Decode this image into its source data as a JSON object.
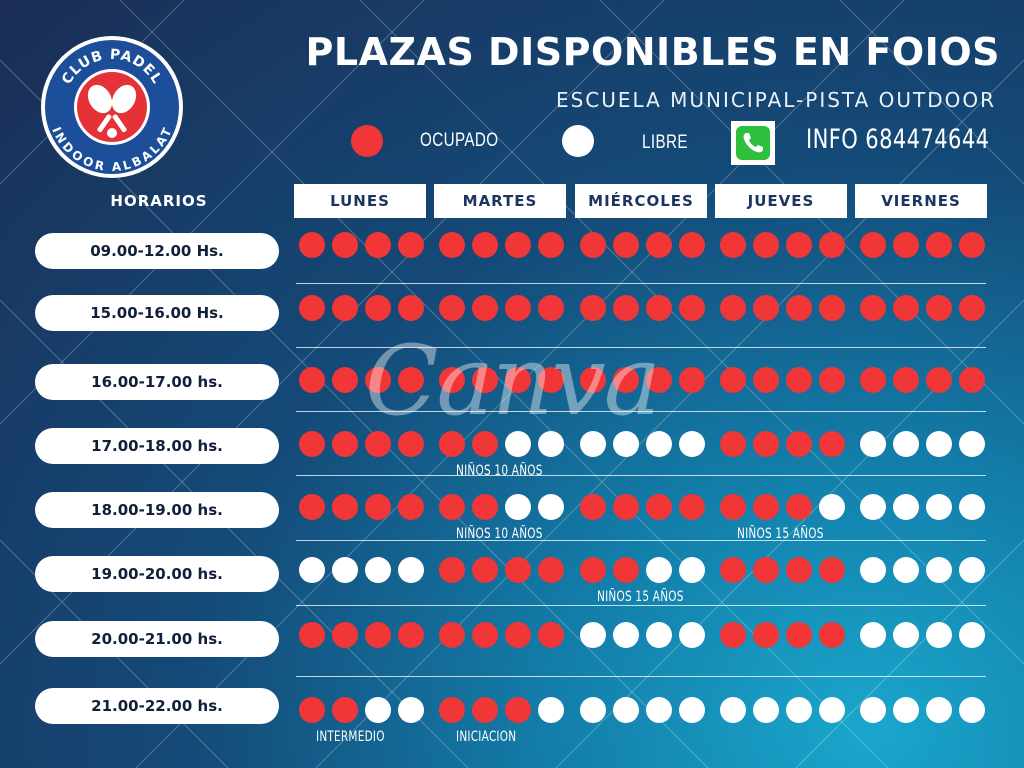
{
  "header": {
    "title": "PLAZAS DISPONIBLES EN FOIOS",
    "subtitle": "ESCUELA MUNICIPAL-PISTA OUTDOOR"
  },
  "logo": {
    "top_text": "CLUB PADEL",
    "bottom_text": "INDOOR ALBALAT"
  },
  "legend": {
    "occupied_label": "OCUPADO",
    "free_label": "LIBRE",
    "occupied_color": "#f03637",
    "free_color": "#ffffff"
  },
  "contact": {
    "icon": "phone-icon",
    "info": "INFO 684474644"
  },
  "watermark": "Canva",
  "table": {
    "horarios_label": "HORARIOS",
    "days": [
      "LUNES",
      "MARTES",
      "MIÉRCOLES",
      "JUEVES",
      "VIERNES"
    ],
    "slots": [
      {
        "time": "09.00-12.00 Hs.",
        "cells": [
          [
            "o",
            "o",
            "o",
            "o"
          ],
          [
            "o",
            "o",
            "o",
            "o"
          ],
          [
            "o",
            "o",
            "o",
            "o"
          ],
          [
            "o",
            "o",
            "o",
            "o"
          ],
          [
            "o",
            "o",
            "o",
            "o"
          ]
        ]
      },
      {
        "time": "15.00-16.00 Hs.",
        "cells": [
          [
            "o",
            "o",
            "o",
            "o"
          ],
          [
            "o",
            "o",
            "o",
            "o"
          ],
          [
            "o",
            "o",
            "o",
            "o"
          ],
          [
            "o",
            "o",
            "o",
            "o"
          ],
          [
            "o",
            "o",
            "o",
            "o"
          ]
        ]
      },
      {
        "time": "16.00-17.00 hs.",
        "cells": [
          [
            "o",
            "o",
            "o",
            "o"
          ],
          [
            "o",
            "o",
            "o",
            "o"
          ],
          [
            "o",
            "o",
            "o",
            "o"
          ],
          [
            "o",
            "o",
            "o",
            "o"
          ],
          [
            "o",
            "o",
            "o",
            "o"
          ]
        ]
      },
      {
        "time": "17.00-18.00 hs.",
        "cells": [
          [
            "o",
            "o",
            "o",
            "o"
          ],
          [
            "o",
            "o",
            "f",
            "f"
          ],
          [
            "f",
            "f",
            "f",
            "f"
          ],
          [
            "o",
            "o",
            "o",
            "o"
          ],
          [
            "f",
            "f",
            "f",
            "f"
          ]
        ]
      },
      {
        "time": "18.00-19.00 hs.",
        "cells": [
          [
            "o",
            "o",
            "o",
            "o"
          ],
          [
            "o",
            "o",
            "f",
            "f"
          ],
          [
            "o",
            "o",
            "o",
            "o"
          ],
          [
            "o",
            "o",
            "o",
            "f"
          ],
          [
            "f",
            "f",
            "f",
            "f"
          ]
        ]
      },
      {
        "time": "19.00-20.00 hs.",
        "cells": [
          [
            "f",
            "f",
            "f",
            "f"
          ],
          [
            "o",
            "o",
            "o",
            "o"
          ],
          [
            "o",
            "o",
            "f",
            "f"
          ],
          [
            "o",
            "o",
            "o",
            "o"
          ],
          [
            "f",
            "f",
            "f",
            "f"
          ]
        ]
      },
      {
        "time": "20.00-21.00 hs.",
        "cells": [
          [
            "o",
            "o",
            "o",
            "o"
          ],
          [
            "o",
            "o",
            "o",
            "o"
          ],
          [
            "f",
            "f",
            "f",
            "f"
          ],
          [
            "o",
            "o",
            "o",
            "o"
          ],
          [
            "f",
            "f",
            "f",
            "f"
          ]
        ]
      },
      {
        "time": "21.00-22.00 hs.",
        "cells": [
          [
            "o",
            "o",
            "f",
            "f"
          ],
          [
            "o",
            "o",
            "o",
            "f"
          ],
          [
            "f",
            "f",
            "f",
            "f"
          ],
          [
            "f",
            "f",
            "f",
            "f"
          ],
          [
            "f",
            "f",
            "f",
            "f"
          ]
        ]
      }
    ],
    "notes": [
      {
        "slot": 3,
        "day": 1,
        "text": "NIÑOS 10 AÑOS"
      },
      {
        "slot": 4,
        "day": 1,
        "text": "NIÑOS 10 AÑOS"
      },
      {
        "slot": 4,
        "day": 3,
        "text": "NIÑOS 15 AÑOS"
      },
      {
        "slot": 5,
        "day": 2,
        "text": "NIÑOS 15 AÑOS"
      },
      {
        "slot": 7,
        "day": 0,
        "text": "INTERMEDIO"
      },
      {
        "slot": 7,
        "day": 1,
        "text": "INICIACION"
      }
    ]
  }
}
